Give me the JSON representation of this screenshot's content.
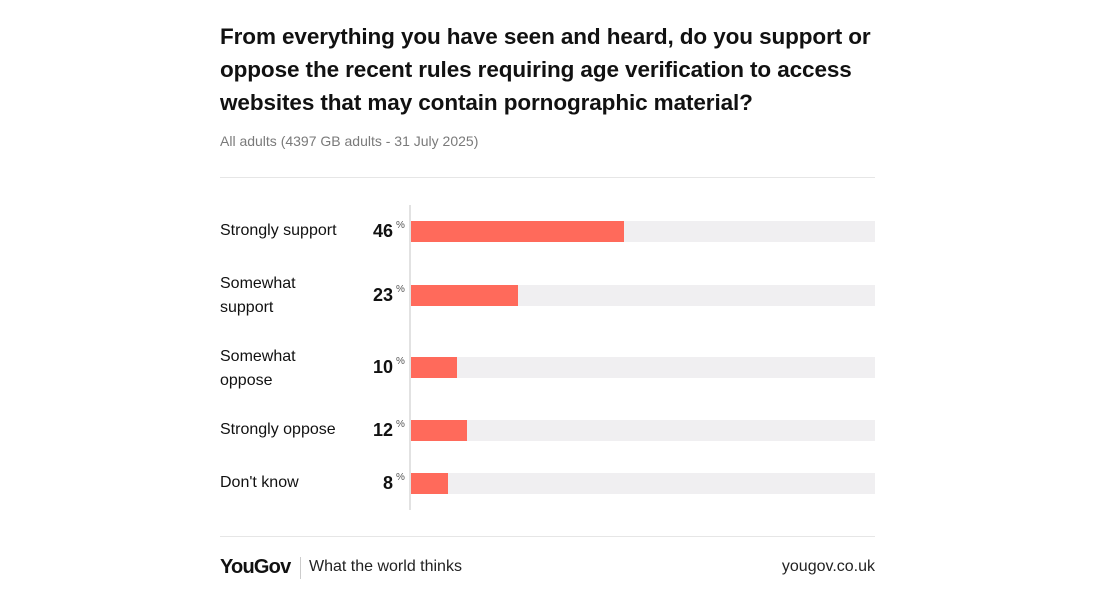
{
  "title": "From everything you have seen and heard, do you support or oppose the recent rules requiring age verification to access websites that may contain pornographic material?",
  "subtitle": "All adults (4397 GB adults - 31 July 2025)",
  "percent_symbol": "%",
  "colors": {
    "bar": "#ff6a5b",
    "track": "#f0eff1"
  },
  "chart_data": {
    "type": "bar",
    "orientation": "horizontal",
    "title": "From everything you have seen and heard, do you support or oppose the recent rules requiring age verification to access websites that may contain pornographic material?",
    "subtitle": "All adults (4397 GB adults - 31 July 2025)",
    "categories": [
      "Strongly support",
      "Somewhat support",
      "Somewhat oppose",
      "Strongly oppose",
      "Don't know"
    ],
    "values": [
      46,
      23,
      10,
      12,
      8
    ],
    "unit": "%",
    "xlim": [
      0,
      100
    ],
    "grid": false,
    "legend": "none"
  },
  "footer": {
    "brand": "YouGov",
    "tagline": "What the world thinks",
    "url": "yougov.co.uk"
  }
}
